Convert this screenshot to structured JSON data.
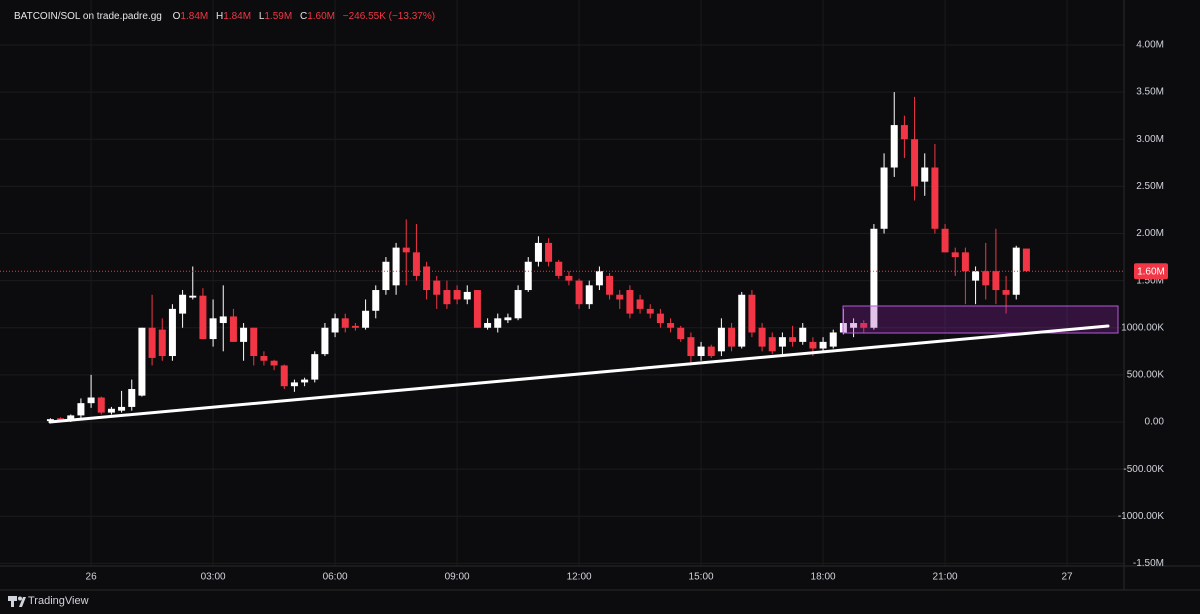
{
  "header": {
    "symbol": "BATCOIN/SOL on trade.padre.gg",
    "ohlc": [
      {
        "label": "O",
        "value": "1.84M"
      },
      {
        "label": "H",
        "value": "1.84M"
      },
      {
        "label": "L",
        "value": "1.59M"
      },
      {
        "label": "C",
        "value": "1.60M"
      }
    ],
    "change": "−246.55K (−13.37%)"
  },
  "footer": {
    "brand": "TradingView"
  },
  "chart_data": {
    "type": "candlestick",
    "x": [
      -1,
      -0.75,
      -0.5,
      -0.25,
      0,
      0.25,
      0.5,
      0.75,
      1,
      1.25,
      1.5,
      1.75,
      2,
      2.25,
      2.5,
      2.75,
      3,
      3.25,
      3.5,
      3.75,
      4,
      4.25,
      4.5,
      4.75,
      5,
      5.25,
      5.5,
      5.75,
      6,
      6.25,
      6.5,
      6.75,
      7,
      7.25,
      7.5,
      7.75,
      8,
      8.25,
      8.5,
      8.75,
      9,
      9.25,
      9.5,
      9.75,
      10,
      10.25,
      10.5,
      10.75,
      11,
      11.25,
      11.5,
      11.75,
      12,
      12.25,
      12.5,
      12.75,
      13,
      13.25,
      13.5,
      13.75,
      14,
      14.25,
      14.5,
      14.75,
      15,
      15.25,
      15.5,
      15.75,
      16,
      16.25,
      16.5,
      16.75,
      17,
      17.25,
      17.5,
      17.75,
      18,
      18.25,
      18.5,
      18.75,
      19,
      19.25,
      19.5,
      19.75,
      20,
      20.25,
      20.5,
      20.75,
      21,
      21.25,
      21.5,
      21.75,
      22,
      22.25,
      22.5,
      22.75,
      23
    ],
    "open": [
      10000,
      40000,
      20000,
      70000,
      200000,
      260000,
      100000,
      120000,
      160000,
      280000,
      1000000,
      980000,
      700000,
      1150000,
      1320000,
      1340000,
      880000,
      1050000,
      1120000,
      850000,
      1000000,
      700000,
      650000,
      600000,
      380000,
      420000,
      450000,
      720000,
      950000,
      1100000,
      1020000,
      1000000,
      1180000,
      1400000,
      1450000,
      1850000,
      1800000,
      1650000,
      1500000,
      1400000,
      1400000,
      1300000,
      1400000,
      1000000,
      1000000,
      1080000,
      1100000,
      1400000,
      1700000,
      1900000,
      1700000,
      1550000,
      1500000,
      1250000,
      1450000,
      1550000,
      1350000,
      1400000,
      1300000,
      1200000,
      1150000,
      1050000,
      1000000,
      900000,
      700000,
      800000,
      750000,
      1000000,
      800000,
      1350000,
      1000000,
      900000,
      800000,
      900000,
      850000,
      850000,
      780000,
      800000,
      950000,
      1000000,
      1050000,
      1000000,
      2050000,
      2700000,
      3150000,
      3000000,
      2550000,
      2700000,
      2050000,
      1800000,
      1800000,
      1500000,
      1600000,
      1600000,
      1400000,
      1350000,
      1840000
    ],
    "high": [
      40000,
      50000,
      80000,
      250000,
      500000,
      270000,
      160000,
      330000,
      450000,
      1000000,
      1350000,
      1100000,
      1250000,
      1400000,
      1650000,
      1420000,
      1300000,
      1450000,
      1200000,
      1050000,
      1000000,
      750000,
      660000,
      610000,
      450000,
      470000,
      750000,
      1050000,
      1150000,
      1150000,
      1050000,
      1300000,
      1450000,
      1750000,
      1900000,
      2150000,
      2100000,
      1700000,
      1550000,
      1500000,
      1450000,
      1450000,
      1400000,
      1100000,
      1150000,
      1150000,
      1450000,
      1750000,
      1970000,
      1950000,
      1720000,
      1600000,
      1520000,
      1500000,
      1650000,
      1580000,
      1400000,
      1450000,
      1350000,
      1250000,
      1200000,
      1100000,
      1020000,
      950000,
      850000,
      820000,
      1100000,
      1050000,
      1380000,
      1400000,
      1050000,
      950000,
      950000,
      1020000,
      1050000,
      900000,
      900000,
      980000,
      1200000,
      1100000,
      1080000,
      2100000,
      2850000,
      3500000,
      3250000,
      3450000,
      2850000,
      2950000,
      2100000,
      1850000,
      1850000,
      1650000,
      1900000,
      2050000,
      1550000,
      1870000,
      1840000
    ],
    "low": [
      0,
      0,
      0,
      40000,
      150000,
      80000,
      80000,
      100000,
      120000,
      270000,
      600000,
      650000,
      650000,
      1000000,
      1300000,
      880000,
      800000,
      750000,
      850000,
      650000,
      600000,
      600000,
      550000,
      350000,
      320000,
      380000,
      420000,
      700000,
      900000,
      950000,
      970000,
      980000,
      1100000,
      1350000,
      1350000,
      1450000,
      1500000,
      1300000,
      1200000,
      1200000,
      1250000,
      1250000,
      1000000,
      980000,
      950000,
      1050000,
      1080000,
      1380000,
      1650000,
      1650000,
      1520000,
      1450000,
      1200000,
      1200000,
      1400000,
      1300000,
      1200000,
      1100000,
      1150000,
      1100000,
      1000000,
      950000,
      850000,
      600000,
      650000,
      680000,
      700000,
      750000,
      780000,
      900000,
      750000,
      720000,
      700000,
      800000,
      820000,
      700000,
      750000,
      780000,
      930000,
      900000,
      950000,
      980000,
      2000000,
      2600000,
      2800000,
      2350000,
      2400000,
      2000000,
      1800000,
      1550000,
      1250000,
      1250000,
      1300000,
      1250000,
      1150000,
      1300000,
      1590000
    ],
    "close": [
      30000,
      10000,
      70000,
      200000,
      260000,
      100000,
      140000,
      160000,
      350000,
      1000000,
      680000,
      700000,
      1200000,
      1350000,
      1340000,
      880000,
      1100000,
      1120000,
      850000,
      1000000,
      700000,
      650000,
      600000,
      380000,
      420000,
      450000,
      720000,
      1000000,
      1100000,
      1000000,
      1000000,
      1180000,
      1400000,
      1700000,
      1850000,
      1800000,
      1550000,
      1400000,
      1350000,
      1250000,
      1300000,
      1380000,
      1000000,
      1050000,
      1100000,
      1110000,
      1400000,
      1700000,
      1900000,
      1700000,
      1550000,
      1500000,
      1250000,
      1450000,
      1600000,
      1350000,
      1300000,
      1150000,
      1200000,
      1150000,
      1050000,
      1000000,
      880000,
      700000,
      800000,
      700000,
      1000000,
      800000,
      1350000,
      950000,
      800000,
      750000,
      900000,
      850000,
      1000000,
      780000,
      850000,
      950000,
      1050000,
      1050000,
      1000000,
      2050000,
      2700000,
      3150000,
      3000000,
      2500000,
      2700000,
      2050000,
      1800000,
      1750000,
      1600000,
      1600000,
      1450000,
      1400000,
      1350000,
      1850000,
      1600000
    ],
    "up_color": "#ffffff",
    "down_color": "#f23645",
    "xlim": [
      -2.24,
      25.4
    ],
    "ylim": [
      -1517000,
      4180000
    ],
    "xticks": [
      {
        "value": 0,
        "label": "26"
      },
      {
        "value": 3,
        "label": "03:00"
      },
      {
        "value": 6,
        "label": "06:00"
      },
      {
        "value": 9,
        "label": "09:00"
      },
      {
        "value": 12,
        "label": "12:00"
      },
      {
        "value": 15,
        "label": "15:00"
      },
      {
        "value": 18,
        "label": "18:00"
      },
      {
        "value": 21,
        "label": "21:00"
      },
      {
        "value": 24,
        "label": "27"
      }
    ],
    "yticks": [
      {
        "value": 4000000,
        "label": "4.00M"
      },
      {
        "value": 3500000,
        "label": "3.50M"
      },
      {
        "value": 3000000,
        "label": "3.00M"
      },
      {
        "value": 2500000,
        "label": "2.50M"
      },
      {
        "value": 2000000,
        "label": "2.00M"
      },
      {
        "value": 1500000,
        "label": "1.50M"
      },
      {
        "value": 1000000,
        "label": "1000.00K"
      },
      {
        "value": 500000,
        "label": "500.00K"
      },
      {
        "value": 0,
        "label": "0.00"
      },
      {
        "value": -500000,
        "label": "-500.00K"
      },
      {
        "value": -1000000,
        "label": "-1000.00K"
      },
      {
        "value": -1500000,
        "label": "-1.50M"
      }
    ],
    "grid": true,
    "last_price": {
      "value": 1600000,
      "label": "1.60M"
    }
  }
}
